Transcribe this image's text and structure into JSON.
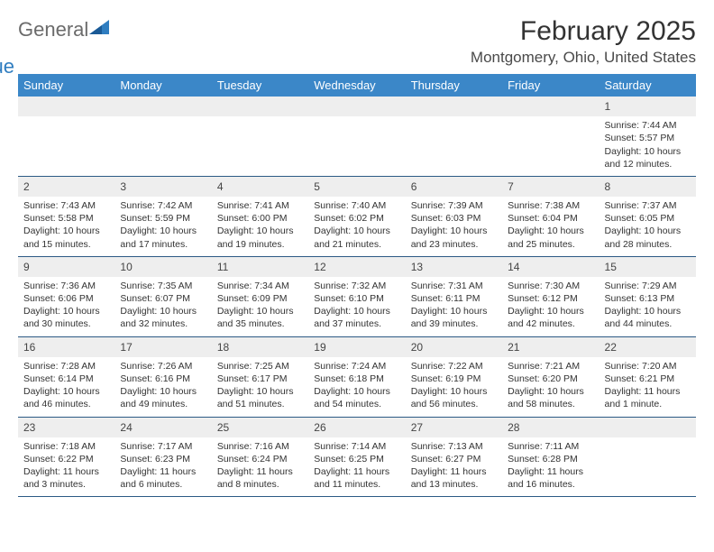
{
  "logo": {
    "word1": "General",
    "word2": "Blue"
  },
  "title": "February 2025",
  "location": "Montgomery, Ohio, United States",
  "header_bg": "#3b87c8",
  "row_border": "#2c5a85",
  "daynum_bg": "#eeeeee",
  "weekdays": [
    "Sunday",
    "Monday",
    "Tuesday",
    "Wednesday",
    "Thursday",
    "Friday",
    "Saturday"
  ],
  "weeks": [
    [
      {
        "empty": true
      },
      {
        "empty": true
      },
      {
        "empty": true
      },
      {
        "empty": true
      },
      {
        "empty": true
      },
      {
        "empty": true
      },
      {
        "n": "1",
        "sunrise": "Sunrise: 7:44 AM",
        "sunset": "Sunset: 5:57 PM",
        "day1": "Daylight: 10 hours",
        "day2": "and 12 minutes."
      }
    ],
    [
      {
        "n": "2",
        "sunrise": "Sunrise: 7:43 AM",
        "sunset": "Sunset: 5:58 PM",
        "day1": "Daylight: 10 hours",
        "day2": "and 15 minutes."
      },
      {
        "n": "3",
        "sunrise": "Sunrise: 7:42 AM",
        "sunset": "Sunset: 5:59 PM",
        "day1": "Daylight: 10 hours",
        "day2": "and 17 minutes."
      },
      {
        "n": "4",
        "sunrise": "Sunrise: 7:41 AM",
        "sunset": "Sunset: 6:00 PM",
        "day1": "Daylight: 10 hours",
        "day2": "and 19 minutes."
      },
      {
        "n": "5",
        "sunrise": "Sunrise: 7:40 AM",
        "sunset": "Sunset: 6:02 PM",
        "day1": "Daylight: 10 hours",
        "day2": "and 21 minutes."
      },
      {
        "n": "6",
        "sunrise": "Sunrise: 7:39 AM",
        "sunset": "Sunset: 6:03 PM",
        "day1": "Daylight: 10 hours",
        "day2": "and 23 minutes."
      },
      {
        "n": "7",
        "sunrise": "Sunrise: 7:38 AM",
        "sunset": "Sunset: 6:04 PM",
        "day1": "Daylight: 10 hours",
        "day2": "and 25 minutes."
      },
      {
        "n": "8",
        "sunrise": "Sunrise: 7:37 AM",
        "sunset": "Sunset: 6:05 PM",
        "day1": "Daylight: 10 hours",
        "day2": "and 28 minutes."
      }
    ],
    [
      {
        "n": "9",
        "sunrise": "Sunrise: 7:36 AM",
        "sunset": "Sunset: 6:06 PM",
        "day1": "Daylight: 10 hours",
        "day2": "and 30 minutes."
      },
      {
        "n": "10",
        "sunrise": "Sunrise: 7:35 AM",
        "sunset": "Sunset: 6:07 PM",
        "day1": "Daylight: 10 hours",
        "day2": "and 32 minutes."
      },
      {
        "n": "11",
        "sunrise": "Sunrise: 7:34 AM",
        "sunset": "Sunset: 6:09 PM",
        "day1": "Daylight: 10 hours",
        "day2": "and 35 minutes."
      },
      {
        "n": "12",
        "sunrise": "Sunrise: 7:32 AM",
        "sunset": "Sunset: 6:10 PM",
        "day1": "Daylight: 10 hours",
        "day2": "and 37 minutes."
      },
      {
        "n": "13",
        "sunrise": "Sunrise: 7:31 AM",
        "sunset": "Sunset: 6:11 PM",
        "day1": "Daylight: 10 hours",
        "day2": "and 39 minutes."
      },
      {
        "n": "14",
        "sunrise": "Sunrise: 7:30 AM",
        "sunset": "Sunset: 6:12 PM",
        "day1": "Daylight: 10 hours",
        "day2": "and 42 minutes."
      },
      {
        "n": "15",
        "sunrise": "Sunrise: 7:29 AM",
        "sunset": "Sunset: 6:13 PM",
        "day1": "Daylight: 10 hours",
        "day2": "and 44 minutes."
      }
    ],
    [
      {
        "n": "16",
        "sunrise": "Sunrise: 7:28 AM",
        "sunset": "Sunset: 6:14 PM",
        "day1": "Daylight: 10 hours",
        "day2": "and 46 minutes."
      },
      {
        "n": "17",
        "sunrise": "Sunrise: 7:26 AM",
        "sunset": "Sunset: 6:16 PM",
        "day1": "Daylight: 10 hours",
        "day2": "and 49 minutes."
      },
      {
        "n": "18",
        "sunrise": "Sunrise: 7:25 AM",
        "sunset": "Sunset: 6:17 PM",
        "day1": "Daylight: 10 hours",
        "day2": "and 51 minutes."
      },
      {
        "n": "19",
        "sunrise": "Sunrise: 7:24 AM",
        "sunset": "Sunset: 6:18 PM",
        "day1": "Daylight: 10 hours",
        "day2": "and 54 minutes."
      },
      {
        "n": "20",
        "sunrise": "Sunrise: 7:22 AM",
        "sunset": "Sunset: 6:19 PM",
        "day1": "Daylight: 10 hours",
        "day2": "and 56 minutes."
      },
      {
        "n": "21",
        "sunrise": "Sunrise: 7:21 AM",
        "sunset": "Sunset: 6:20 PM",
        "day1": "Daylight: 10 hours",
        "day2": "and 58 minutes."
      },
      {
        "n": "22",
        "sunrise": "Sunrise: 7:20 AM",
        "sunset": "Sunset: 6:21 PM",
        "day1": "Daylight: 11 hours",
        "day2": "and 1 minute."
      }
    ],
    [
      {
        "n": "23",
        "sunrise": "Sunrise: 7:18 AM",
        "sunset": "Sunset: 6:22 PM",
        "day1": "Daylight: 11 hours",
        "day2": "and 3 minutes."
      },
      {
        "n": "24",
        "sunrise": "Sunrise: 7:17 AM",
        "sunset": "Sunset: 6:23 PM",
        "day1": "Daylight: 11 hours",
        "day2": "and 6 minutes."
      },
      {
        "n": "25",
        "sunrise": "Sunrise: 7:16 AM",
        "sunset": "Sunset: 6:24 PM",
        "day1": "Daylight: 11 hours",
        "day2": "and 8 minutes."
      },
      {
        "n": "26",
        "sunrise": "Sunrise: 7:14 AM",
        "sunset": "Sunset: 6:25 PM",
        "day1": "Daylight: 11 hours",
        "day2": "and 11 minutes."
      },
      {
        "n": "27",
        "sunrise": "Sunrise: 7:13 AM",
        "sunset": "Sunset: 6:27 PM",
        "day1": "Daylight: 11 hours",
        "day2": "and 13 minutes."
      },
      {
        "n": "28",
        "sunrise": "Sunrise: 7:11 AM",
        "sunset": "Sunset: 6:28 PM",
        "day1": "Daylight: 11 hours",
        "day2": "and 16 minutes."
      },
      {
        "empty": true
      }
    ]
  ]
}
